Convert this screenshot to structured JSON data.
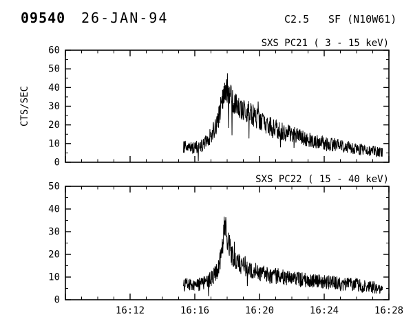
{
  "header": {
    "event_number": "09540",
    "date": "26-JAN-94",
    "class": "C2.5",
    "flare": "SF (N10W61)"
  },
  "x_axis": {
    "tick_labels": [
      "16:12",
      "16:16",
      "16:20",
      "16:24",
      "16:28"
    ]
  },
  "chart_data": [
    {
      "type": "line",
      "title": "SXS PC21 (  3 - 15 keV)",
      "ylabel": "CTS/SEC",
      "ylim": [
        0,
        60
      ],
      "yticks": [
        0,
        10,
        20,
        30,
        40,
        50,
        60
      ],
      "y_minor_step": 5,
      "xlim_minutes_after_1600": [
        8,
        28
      ],
      "x_major_step_min": 4,
      "x_minor_step_min": 1,
      "xticks": [
        {
          "m": 12,
          "label": "16:12"
        },
        {
          "m": 16,
          "label": "16:16"
        },
        {
          "m": 20,
          "label": "16:20"
        },
        {
          "m": 24,
          "label": "16:24"
        },
        {
          "m": 28,
          "label": "16:28"
        }
      ],
      "show_x_labels": false,
      "grid": false,
      "series": [
        {
          "name": "SXS PC21",
          "units": "counts/sec",
          "data_start_min": 15.3,
          "data_end_min": 27.6,
          "peak_time": "16:18",
          "peak_value": 45,
          "noise_scale": 1.2,
          "envelope": [
            [
              15.3,
              8
            ],
            [
              15.7,
              7.5
            ],
            [
              16.0,
              8
            ],
            [
              16.4,
              9
            ],
            [
              16.8,
              12
            ],
            [
              17.1,
              16
            ],
            [
              17.4,
              22
            ],
            [
              17.7,
              32
            ],
            [
              17.85,
              40
            ],
            [
              17.95,
              38
            ],
            [
              18.1,
              36
            ],
            [
              18.3,
              34
            ],
            [
              18.5,
              32
            ],
            [
              18.8,
              30
            ],
            [
              19.0,
              28
            ],
            [
              19.3,
              27
            ],
            [
              19.6,
              25
            ],
            [
              20.0,
              23
            ],
            [
              20.3,
              21
            ],
            [
              20.7,
              19
            ],
            [
              21.0,
              18
            ],
            [
              21.5,
              16
            ],
            [
              22.0,
              15
            ],
            [
              22.5,
              13.5
            ],
            [
              23.0,
              12
            ],
            [
              23.5,
              11
            ],
            [
              24.0,
              10
            ],
            [
              24.5,
              9.5
            ],
            [
              25.0,
              9
            ],
            [
              25.5,
              8
            ],
            [
              26.0,
              7
            ],
            [
              26.5,
              6.5
            ],
            [
              27.0,
              6
            ],
            [
              27.6,
              5
            ]
          ]
        }
      ]
    },
    {
      "type": "line",
      "title": "SXS PC22 ( 15 - 40 keV)",
      "ylabel": "",
      "ylim": [
        0,
        50
      ],
      "yticks": [
        0,
        10,
        20,
        30,
        40,
        50
      ],
      "y_minor_step": 5,
      "xlim_minutes_after_1600": [
        8,
        28
      ],
      "x_major_step_min": 4,
      "x_minor_step_min": 1,
      "xticks": [
        {
          "m": 12,
          "label": "16:12"
        },
        {
          "m": 16,
          "label": "16:16"
        },
        {
          "m": 20,
          "label": "16:20"
        },
        {
          "m": 24,
          "label": "16:24"
        },
        {
          "m": 28,
          "label": "16:28"
        }
      ],
      "show_x_labels": true,
      "grid": false,
      "series": [
        {
          "name": "SXS PC22",
          "units": "counts/sec",
          "data_start_min": 15.3,
          "data_end_min": 27.6,
          "peak_time": "16:18",
          "peak_value": 37,
          "noise_scale": 1.15,
          "envelope": [
            [
              15.3,
              7
            ],
            [
              16.0,
              6.5
            ],
            [
              16.5,
              7
            ],
            [
              17.0,
              9
            ],
            [
              17.4,
              13
            ],
            [
              17.7,
              22
            ],
            [
              17.85,
              33
            ],
            [
              17.95,
              30
            ],
            [
              18.1,
              24
            ],
            [
              18.3,
              20
            ],
            [
              18.6,
              17
            ],
            [
              19.0,
              15
            ],
            [
              19.5,
              13
            ],
            [
              20.0,
              12
            ],
            [
              20.5,
              11
            ],
            [
              21.0,
              10.5
            ],
            [
              21.5,
              10
            ],
            [
              22.0,
              9.5
            ],
            [
              22.5,
              9
            ],
            [
              23.0,
              8.5
            ],
            [
              23.5,
              8
            ],
            [
              24.0,
              8
            ],
            [
              24.5,
              7.5
            ],
            [
              25.0,
              7
            ],
            [
              25.5,
              7
            ],
            [
              26.0,
              6.5
            ],
            [
              26.5,
              6
            ],
            [
              27.0,
              5.5
            ],
            [
              27.6,
              5
            ]
          ]
        }
      ]
    }
  ]
}
